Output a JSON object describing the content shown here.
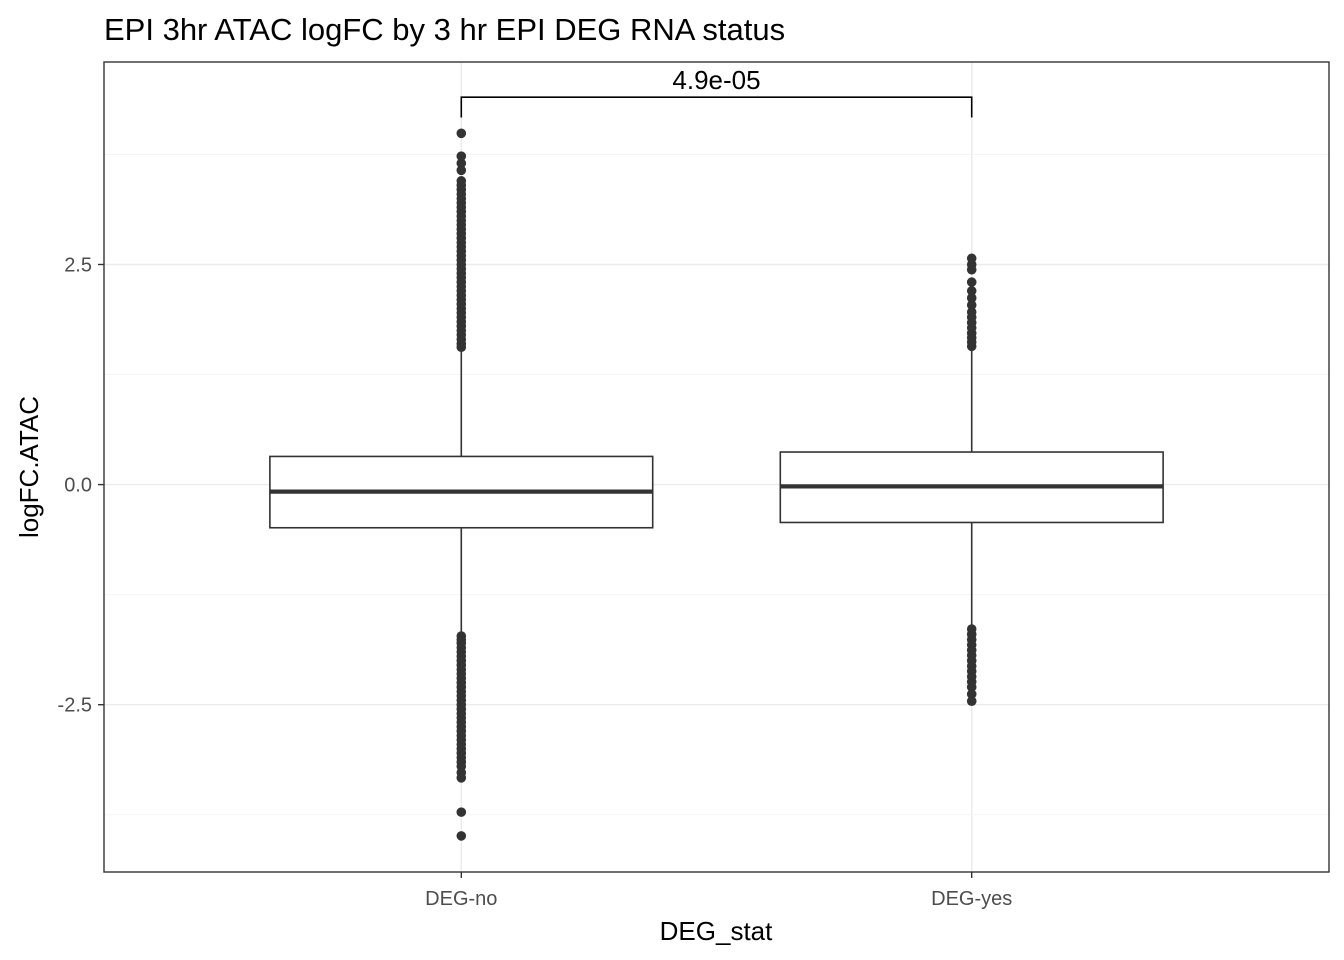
{
  "chart_data": {
    "type": "box",
    "title": "EPI 3hr ATAC logFC by 3 hr EPI DEG RNA status",
    "xlabel": "DEG_stat",
    "ylabel": "logFC.ATAC",
    "categories": [
      "DEG-no",
      "DEG-yes"
    ],
    "ylim": [
      -4.4,
      4.8
    ],
    "yticks": [
      -2.5,
      0.0,
      2.5
    ],
    "ytick_labels": [
      "-2.5",
      "0.0",
      "2.5"
    ],
    "grid": true,
    "legend": "none",
    "theme": "bw",
    "colors": {
      "box": "#333333",
      "grid_major": "#ebebeb",
      "grid_minor": "#f5f5f5",
      "panel_border": "#333333",
      "outlier": "#333333"
    },
    "boxes": [
      {
        "category": "DEG-no",
        "median": -0.08,
        "q1": -0.49,
        "q3": 0.32,
        "whisker_low": -1.7,
        "whisker_high": 1.55,
        "outliers_high": [
          1.56,
          1.6,
          1.65,
          1.7,
          1.75,
          1.8,
          1.85,
          1.9,
          1.95,
          2.0,
          2.05,
          2.1,
          2.15,
          2.2,
          2.25,
          2.3,
          2.35,
          2.4,
          2.45,
          2.5,
          2.55,
          2.6,
          2.65,
          2.7,
          2.75,
          2.8,
          2.85,
          2.9,
          2.95,
          3.0,
          3.05,
          3.1,
          3.15,
          3.2,
          3.25,
          3.3,
          3.35,
          3.4,
          3.45,
          3.57,
          3.65,
          3.73,
          3.99
        ],
        "outliers_low": [
          -1.72,
          -1.76,
          -1.8,
          -1.85,
          -1.9,
          -1.95,
          -2.0,
          -2.05,
          -2.1,
          -2.15,
          -2.2,
          -2.25,
          -2.3,
          -2.35,
          -2.4,
          -2.45,
          -2.5,
          -2.55,
          -2.6,
          -2.65,
          -2.7,
          -2.75,
          -2.8,
          -2.85,
          -2.9,
          -2.95,
          -3.0,
          -3.05,
          -3.1,
          -3.15,
          -3.2,
          -3.27,
          -3.33,
          -3.72,
          -3.99
        ]
      },
      {
        "category": "DEG-yes",
        "median": -0.02,
        "q1": -0.43,
        "q3": 0.37,
        "whisker_low": -1.62,
        "whisker_high": 1.55,
        "outliers_high": [
          1.57,
          1.62,
          1.67,
          1.72,
          1.78,
          1.84,
          1.9,
          1.96,
          2.04,
          2.12,
          2.2,
          2.3,
          2.44,
          2.5,
          2.57
        ],
        "outliers_low": [
          -1.64,
          -1.7,
          -1.76,
          -1.82,
          -1.88,
          -1.94,
          -2.0,
          -2.06,
          -2.12,
          -2.18,
          -2.24,
          -2.3,
          -2.38,
          -2.46
        ]
      }
    ],
    "comparison": {
      "groups": [
        "DEG-no",
        "DEG-yes"
      ],
      "label": "4.9e-05",
      "y": 4.4,
      "tip_y": 4.17
    }
  }
}
